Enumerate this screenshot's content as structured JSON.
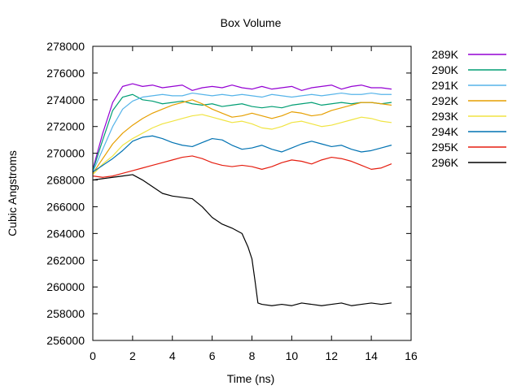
{
  "chart_data": {
    "type": "line",
    "title": "Box Volume",
    "xlabel": "Time (ns)",
    "ylabel": "Cubic Angstroms",
    "xlim": [
      0,
      16
    ],
    "ylim": [
      256000,
      278000
    ],
    "xticks": [
      "0",
      "2",
      "4",
      "6",
      "8",
      "10",
      "12",
      "14",
      "16"
    ],
    "yticks": [
      "256000",
      "258000",
      "260000",
      "262000",
      "264000",
      "266000",
      "268000",
      "270000",
      "272000",
      "274000",
      "276000",
      "278000"
    ],
    "grid": false,
    "legend_position": "outside-right",
    "series": [
      {
        "name": "289K",
        "color": "#9400d3",
        "x": [
          0,
          0.5,
          1,
          1.5,
          2,
          2.5,
          3,
          3.5,
          4,
          4.5,
          5,
          5.5,
          6,
          6.5,
          7,
          7.5,
          8,
          8.5,
          9,
          9.5,
          10,
          10.5,
          11,
          11.5,
          12,
          12.5,
          13,
          13.5,
          14,
          14.5,
          15
        ],
        "y": [
          268800,
          271500,
          273800,
          275000,
          275200,
          275000,
          275100,
          274900,
          275000,
          275100,
          274700,
          274900,
          275000,
          274900,
          275100,
          274900,
          274800,
          275000,
          274800,
          274900,
          275000,
          274700,
          274900,
          275000,
          275100,
          274800,
          275000,
          275100,
          274900,
          274900,
          274800
        ]
      },
      {
        "name": "290K",
        "color": "#009e73",
        "x": [
          0,
          0.5,
          1,
          1.5,
          2,
          2.5,
          3,
          3.5,
          4,
          4.5,
          5,
          5.5,
          6,
          6.5,
          7,
          7.5,
          8,
          8.5,
          9,
          9.5,
          10,
          10.5,
          11,
          11.5,
          12,
          12.5,
          13,
          13.5,
          14,
          14.5,
          15
        ],
        "y": [
          268700,
          271000,
          273200,
          274200,
          274400,
          274000,
          273900,
          273700,
          273800,
          273900,
          273700,
          273600,
          273700,
          273500,
          273600,
          273700,
          273500,
          273400,
          273500,
          273400,
          273600,
          273700,
          273800,
          273600,
          273700,
          273800,
          273700,
          273800,
          273800,
          273700,
          273800
        ]
      },
      {
        "name": "291K",
        "color": "#56b4e9",
        "x": [
          0,
          0.5,
          1,
          1.5,
          2,
          2.5,
          3,
          3.5,
          4,
          4.5,
          5,
          5.5,
          6,
          6.5,
          7,
          7.5,
          8,
          8.5,
          9,
          9.5,
          10,
          10.5,
          11,
          11.5,
          12,
          12.5,
          13,
          13.5,
          14,
          14.5,
          15
        ],
        "y": [
          268600,
          270300,
          272000,
          273300,
          273900,
          274200,
          274300,
          274400,
          274300,
          274300,
          274500,
          274400,
          274300,
          274400,
          274300,
          274400,
          274300,
          274200,
          274400,
          274300,
          274200,
          274300,
          274400,
          274300,
          274400,
          274500,
          274400,
          274400,
          274500,
          274400,
          274400
        ]
      },
      {
        "name": "292K",
        "color": "#e69f00",
        "x": [
          0,
          0.5,
          1,
          1.5,
          2,
          2.5,
          3,
          3.5,
          4,
          4.5,
          5,
          5.5,
          6,
          6.5,
          7,
          7.5,
          8,
          8.5,
          9,
          9.5,
          10,
          10.5,
          11,
          11.5,
          12,
          12.5,
          13,
          13.5,
          14,
          14.5,
          15
        ],
        "y": [
          268500,
          269600,
          270700,
          271500,
          272100,
          272600,
          273000,
          273300,
          273600,
          273800,
          274000,
          273700,
          273300,
          273000,
          272700,
          272800,
          273000,
          272800,
          272600,
          272800,
          273100,
          273000,
          272800,
          272900,
          273200,
          273400,
          273600,
          273800,
          273800,
          273700,
          273600
        ]
      },
      {
        "name": "293K",
        "color": "#f0e442",
        "x": [
          0,
          0.5,
          1,
          1.5,
          2,
          2.5,
          3,
          3.5,
          4,
          4.5,
          5,
          5.5,
          6,
          6.5,
          7,
          7.5,
          8,
          8.5,
          9,
          9.5,
          10,
          10.5,
          11,
          11.5,
          12,
          12.5,
          13,
          13.5,
          14,
          14.5,
          15
        ],
        "y": [
          268400,
          269200,
          269800,
          270600,
          271100,
          271500,
          271900,
          272200,
          272400,
          272600,
          272800,
          272900,
          272700,
          272500,
          272300,
          272400,
          272200,
          271900,
          271800,
          272000,
          272300,
          272400,
          272200,
          272000,
          272100,
          272300,
          272500,
          272700,
          272600,
          272400,
          272300
        ]
      },
      {
        "name": "294K",
        "color": "#0072b2",
        "x": [
          0,
          0.5,
          1,
          1.5,
          2,
          2.5,
          3,
          3.5,
          4,
          4.5,
          5,
          5.5,
          6,
          6.5,
          7,
          7.5,
          8,
          8.5,
          9,
          9.5,
          10,
          10.5,
          11,
          11.5,
          12,
          12.5,
          13,
          13.5,
          14,
          14.5,
          15
        ],
        "y": [
          268600,
          269100,
          269600,
          270200,
          270900,
          271200,
          271300,
          271100,
          270800,
          270600,
          270500,
          270800,
          271100,
          271000,
          270600,
          270300,
          270400,
          270600,
          270300,
          270100,
          270400,
          270700,
          270900,
          270700,
          270500,
          270600,
          270300,
          270100,
          270200,
          270400,
          270600
        ]
      },
      {
        "name": "295K",
        "color": "#e51e10",
        "x": [
          0,
          0.5,
          1,
          1.5,
          2,
          2.5,
          3,
          3.5,
          4,
          4.5,
          5,
          5.5,
          6,
          6.5,
          7,
          7.5,
          8,
          8.5,
          9,
          9.5,
          10,
          10.5,
          11,
          11.5,
          12,
          12.5,
          13,
          13.5,
          14,
          14.5,
          15
        ],
        "y": [
          268300,
          268200,
          268300,
          268500,
          268700,
          268900,
          269100,
          269300,
          269500,
          269700,
          269800,
          269600,
          269300,
          269100,
          269000,
          269100,
          269000,
          268800,
          269000,
          269300,
          269500,
          269400,
          269200,
          269500,
          269700,
          269600,
          269400,
          269100,
          268800,
          268900,
          269200
        ]
      },
      {
        "name": "296K",
        "color": "#000000",
        "x": [
          0,
          0.5,
          1,
          1.5,
          2,
          2.5,
          3,
          3.5,
          4,
          4.5,
          5,
          5.5,
          6,
          6.5,
          7,
          7.5,
          7.8,
          8,
          8.15,
          8.3,
          8.5,
          9,
          9.5,
          10,
          10.5,
          11,
          11.5,
          12,
          12.5,
          13,
          13.5,
          14,
          14.5,
          15
        ],
        "y": [
          268000,
          268100,
          268200,
          268300,
          268400,
          268000,
          267500,
          267000,
          266800,
          266700,
          266600,
          266000,
          265200,
          264700,
          264400,
          264000,
          263000,
          262100,
          260500,
          258800,
          258700,
          258600,
          258700,
          258600,
          258800,
          258700,
          258600,
          258700,
          258800,
          258600,
          258700,
          258800,
          258700,
          258800
        ]
      }
    ]
  }
}
